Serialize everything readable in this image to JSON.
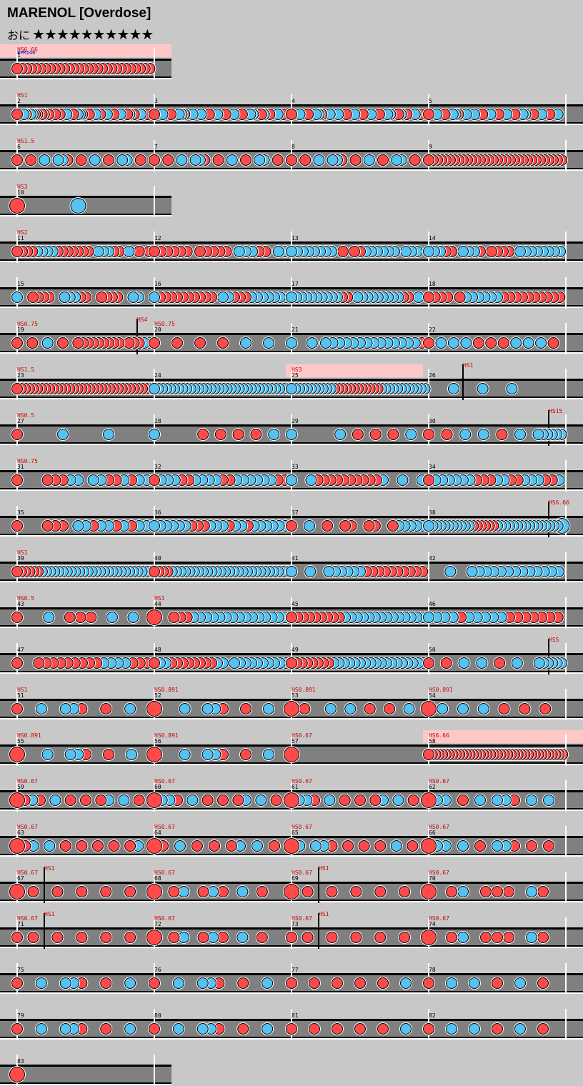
{
  "song": {
    "title": "MARENOL [Overdose]",
    "difficulty_label": "おに",
    "stars": "★★★★★★★★★★"
  },
  "colors": {
    "don": "#ff4a4a",
    "ka": "#55c2f2",
    "lane": "#808080",
    "barline": "#ffffff",
    "text": "#cc0000",
    "bpm_text": "#0000cc",
    "gogo": "#ffc8c8"
  },
  "measures": [
    {
      "n": "1",
      "hs": "HS6.66",
      "bpm": "BPM140",
      "gogo": true,
      "notes": "rrrrrrrrrrrrrrrrrrrrrrrrrrrrr"
    },
    {
      "n": "2",
      "hs": "HS1",
      "notes": "r__br_bbrr_rr_r__r_r__b__r_bbr__r__b_r__b__r__b__rb_r__b__r__"
    },
    {
      "n": "3",
      "notes": "r__b__r__bbr__b__b__r__b__r__b__r__bb__rb_r__b_r__"
    },
    {
      "n": "4",
      "notes": "r__b__r__bbr__b__b__r__b__r__b__r__bb__rb_r__b_r__"
    },
    {
      "n": "5",
      "notes": "r__b__r__bbr__b__b__r__b__r__b__r__bb__r__b__r__b__"
    },
    {
      "n": "6",
      "hs": "HS1.5",
      "notes": "r__r__b__bbr__r__b__r__bb__r__"
    },
    {
      "n": "7",
      "notes": "r__r__b__bbr__r__b__r__bb__r__"
    },
    {
      "n": "8",
      "notes": "r__r__b__bbr__r__b__r__bb__r__"
    },
    {
      "n": "9",
      "notes": "rrrrrrrrrrrrrrrrrrrrrrrrrrrrrrrr"
    },
    {
      "n": "10",
      "hs": "HS3",
      "notes": "R____________________________________________________________B___________________________________________________________________________"
    },
    {
      "n": "11",
      "hs": "HS2",
      "notes": "rrrrbbbbrrrrrrr_bbbrr_b_r_r"
    },
    {
      "n": "12",
      "notes": "rrrrrr_rrrrr_bbbrr_bb"
    },
    {
      "n": "13",
      "notes": "bbbbbbbb_r_rrbbbbbb_bbb_"
    },
    {
      "n": "14",
      "notes": "bbbrr_bbbr_rrrr_bbbbbbbb"
    },
    {
      "n": "15",
      "notes": "b__rrrr__bbbrr__rrrr__bb__"
    },
    {
      "n": "16",
      "notes": "brrrrrrrrrr_bbrrrbbbbbbb"
    },
    {
      "n": "17",
      "notes": "bbbbbbbbbbrr_bbbbbbbbbrr_b_"
    },
    {
      "n": "18",
      "notes": "rrrr_rbbbbbbrrrrrrrrrr"
    },
    {
      "n": "19",
      "hs": "HS0.75",
      "hs2": "HS4",
      "notes": "r__r__b__r__rrrrrrrrr_rrrbb"
    },
    {
      "n": "20",
      "hs": "HS0.75",
      "notes": "rrrrbb"
    },
    {
      "n": "21",
      "notes": "b__b_bbbbbbbbbbbbbbr"
    },
    {
      "n": "22",
      "notes": "rbbbrrrbbbr"
    },
    {
      "n": "23",
      "hs": "HS1.5",
      "notes": "rrrrrrrrrrrrrrrrrrrrrrrrrrrrrrrrrr"
    },
    {
      "n": "24",
      "notes": "bbbbbbbbbbbbbbbbbbbbbbbbbbbbbbbbbb"
    },
    {
      "n": "25",
      "hs": "HS3",
      "gogo": true,
      "notes": "bbbbbbbbbbbrrrrrrrrrrrrbbbbbbbbbbbb"
    },
    {
      "n": "26",
      "hs2": "HS1",
      "notes": "______b______b______b____________"
    },
    {
      "n": "27",
      "hs": "HS0.5",
      "notes": "r__________b__________b__________"
    },
    {
      "n": "28",
      "notes": "b__________r___r___r___r___b___"
    },
    {
      "n": "29",
      "notes": "b__________b___r___r___r___b___"
    },
    {
      "n": "30",
      "hs2": "HS15",
      "notes": "r___r___b___b___r___b___bbbbbb"
    },
    {
      "n": "31",
      "hs": "HS0.75",
      "notes": "r___rrrbb_bbrrbrbb"
    },
    {
      "n": "32",
      "notes": "rbbbrrbbbbrrbbbbbbrr"
    },
    {
      "n": "33",
      "notes": "b__brrrrrrrrrrb__b__b"
    },
    {
      "n": "34",
      "notes": "rbbbbbbrrrbbrrbbbrrb"
    },
    {
      "n": "35",
      "notes": "r___rrr_bbrbbrbrbb"
    },
    {
      "n": "36",
      "notes": "bbbbbbrrrbbbrbbrbbbbbb"
    },
    {
      "n": "37",
      "notes": "r__b__r__rr__rr__rbbbbb"
    },
    {
      "n": "38",
      "hs2": "HS6.66",
      "notes": "bbbbbbbbbbbrrrrrrbbbbbbbbbbbbbbbbB"
    },
    {
      "n": "39",
      "hs": "HS1",
      "notes": "rrrrrrbbbbbbbbbbbbbbbbbbbbbbbbbbb"
    },
    {
      "n": "40",
      "notes": "rrrrbbbbbbbbbbbbbbbbbbbbbbbbbbb"
    },
    {
      "n": "41",
      "notes": "b__b__bbbbbbrrrrrrrrrr"
    },
    {
      "n": "42",
      "notes": "___b__bbbbbbbbbbbbb"
    },
    {
      "n": "43",
      "hs": "HS0.5",
      "notes": "r__b_rrr_b_b_"
    },
    {
      "n": "44",
      "hs": "HS1",
      "notes": "R__rrrbbbbbbbbbbbbbbb"
    },
    {
      "n": "45",
      "notes": "rrrrrrrrrbbbbbbbbbbbbbb"
    },
    {
      "n": "46",
      "notes": "bbbbrbbbbbrrrrrrr"
    },
    {
      "n": "47",
      "notes": "r__rrrrrrrrrbbbbrrr"
    },
    {
      "n": "48",
      "notes": "rbbrrrrrrrrbb_bbbbbbbbbb"
    },
    {
      "n": "49",
      "notes": "rrrrrrrrbbbbbbbbbbbbbbbbbb"
    },
    {
      "n": "50",
      "hs2": "HS5",
      "notes": "r___r___b___b___r___b____bbbbbb"
    },
    {
      "n": "51",
      "hs": "HS1",
      "notes": "r__b__bbr__r__b__"
    },
    {
      "n": "52",
      "hs": "HS0.891",
      "notes": "R___b__bbr__r__b__"
    },
    {
      "n": "53",
      "hs": "HS0.891",
      "notes": "R_r___b__b__r__r__b__"
    },
    {
      "n": "54",
      "hs": "HS0.891",
      "notes": "R_b__b__b__r__r__r__"
    },
    {
      "n": "55",
      "hs": "HS0.891",
      "notes": "R___b__bbr__r__b__"
    },
    {
      "n": "56",
      "hs": "HS0.891",
      "notes": "R___b__bbr__r__b__"
    },
    {
      "n": "57",
      "hs": "HS0.67",
      "notes": "R_____________________________"
    },
    {
      "n": "58",
      "hs": "HS6.66",
      "gogo": true,
      "notes": "rrrrrrrrrrrrrrrrrrrrrrrrrrrrrrrrrrrrrrrr"
    },
    {
      "n": "59",
      "hs": "HS0.67",
      "notes": "Rrbr_b_r_r_rb_b_r_"
    },
    {
      "n": "60",
      "hs": "HS0.67",
      "notes": "Rbbr_b_r_r_rb_b_r_"
    },
    {
      "n": "61",
      "hs": "HS0.67",
      "notes": "Rbbr_b_r_r_rb_b_r_"
    },
    {
      "n": "62",
      "hs": "HS0.67",
      "notes": "Rbb_r_b_bbr_b_b_"
    },
    {
      "n": "63",
      "hs": "HS0.67",
      "notes": "Rrb_b_r_r_r_r_rb_"
    },
    {
      "n": "64",
      "hs": "HS0.67",
      "notes": "Rr_b_r_r_rb_b_r_"
    },
    {
      "n": "65",
      "hs": "HS0.67",
      "notes": "Rb_bbr_r_r_r_b_r_"
    },
    {
      "n": "66",
      "hs": "HS0.67",
      "notes": "Rbb_b_r_bbr_r_r_"
    },
    {
      "n": "67",
      "hs": "HS0.67",
      "hs2": "HS1",
      "notes": "R_r__r__r__r__r__"
    },
    {
      "n": "68",
      "hs": "HS0.67",
      "notes": "R_rb_rbr_b_r__"
    },
    {
      "n": "69",
      "hs": "HS0.67",
      "hs2": "HS1",
      "notes": "R_r__r__r__r__r__"
    },
    {
      "n": "70",
      "hs": "HS0.67",
      "notes": "R_rb_rrr_br_"
    },
    {
      "n": "71",
      "hs": "HS0.67",
      "hs2": "HS1",
      "notes": "r_r__r__r__r__r__"
    },
    {
      "n": "72",
      "hs": "HS0.67",
      "notes": "R_rb_rbr_b_r__"
    },
    {
      "n": "73",
      "hs": "HS0.67",
      "hs2": "HS1",
      "notes": "r_r__r__r__r__r__"
    },
    {
      "n": "74",
      "hs": "HS0.67",
      "notes": "R_rb_rrr_br_"
    },
    {
      "n": "75",
      "notes": "r__b__bbr__r__b__"
    },
    {
      "n": "76",
      "notes": "r__b__bbr__r__b__"
    },
    {
      "n": "77",
      "notes": "r__r__r__r__r__b__"
    },
    {
      "n": "78",
      "notes": "r__b__b__r__b__r__"
    },
    {
      "n": "79",
      "notes": "r__b__bbr__r__b__"
    },
    {
      "n": "80",
      "notes": "r__b__bbr__r__b__"
    },
    {
      "n": "81",
      "notes": "r__r__r__r__r__b__"
    },
    {
      "n": "82",
      "notes": "r__b__b__r__b__r__"
    },
    {
      "n": "83",
      "notes": "R"
    }
  ]
}
